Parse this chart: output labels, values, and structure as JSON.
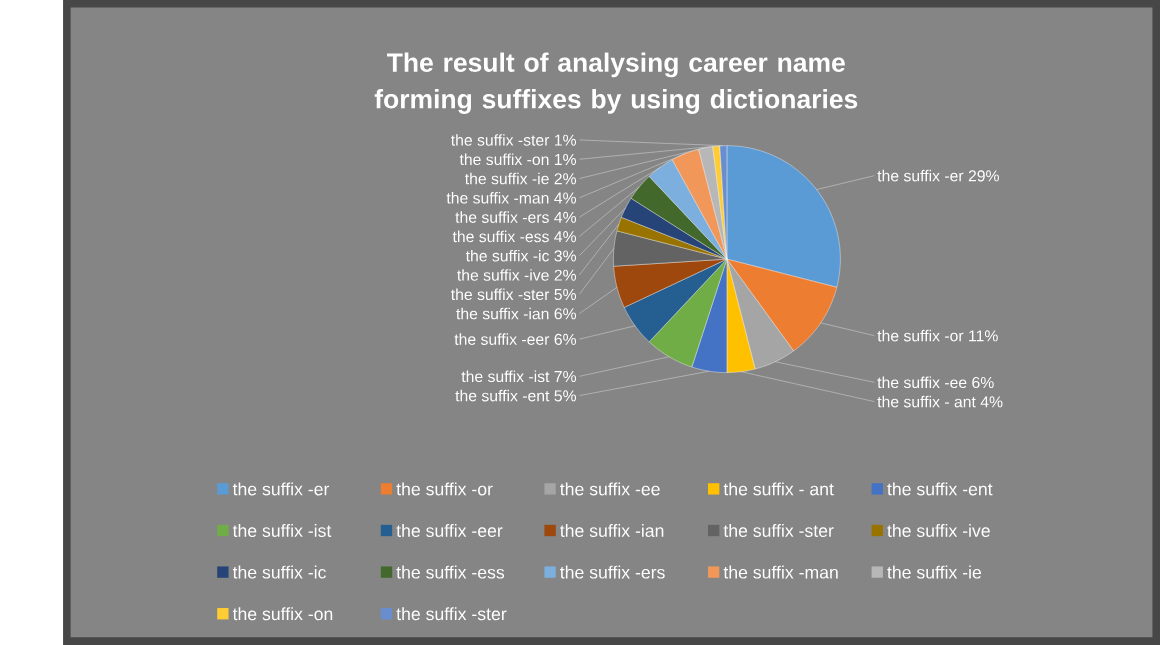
{
  "chart_data": {
    "type": "pie",
    "title": "The result of analysing career name forming suffixes by using dictionaries",
    "categories": [
      "the suffix -er",
      "the suffix -or",
      "the suffix -ee",
      "the suffix - ant",
      "the suffix -ent",
      "the suffix -ist",
      "the suffix -eer",
      "the suffix -ian",
      "the suffix -ster",
      "the suffix -ive",
      "the suffix -ic",
      "the suffix -ess",
      "the suffix -ers",
      "the suffix -man",
      "the suffix -ie",
      "the suffix -on",
      "the suffix -ster"
    ],
    "values": [
      29,
      11,
      6,
      4,
      5,
      7,
      6,
      6,
      5,
      2,
      3,
      4,
      4,
      4,
      2,
      1,
      1
    ],
    "colors": [
      "#5b9bd5",
      "#ed7d31",
      "#a5a5a5",
      "#ffc000",
      "#4472c4",
      "#70ad47",
      "#255e91",
      "#9e480e",
      "#636363",
      "#997300",
      "#264478",
      "#43682b",
      "#7cafdd",
      "#f1975a",
      "#b7b7b7",
      "#ffcd33",
      "#698ed0"
    ],
    "value_labels": [
      "29%",
      "11%",
      "6%",
      "4%",
      "5%",
      "7%",
      "6%",
      "6%",
      "5%",
      "2%",
      "3%",
      "4%",
      "4%",
      "4%",
      "2%",
      "1%",
      "1%"
    ],
    "legend": "bottom"
  }
}
